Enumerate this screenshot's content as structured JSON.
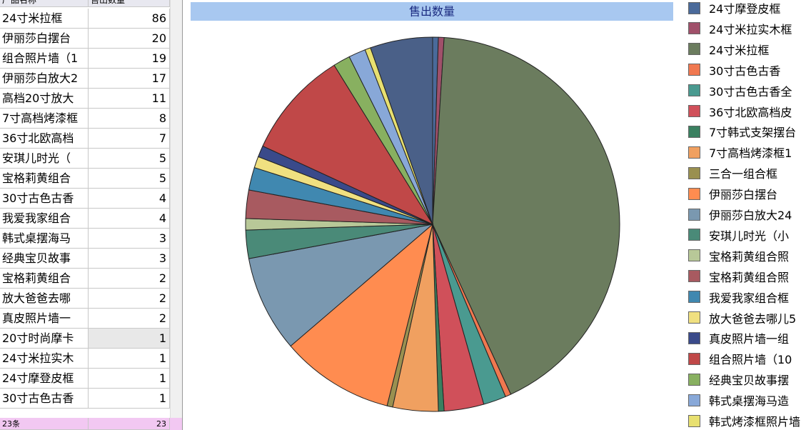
{
  "table": {
    "columns": [
      "产品名称",
      "售出数量"
    ],
    "rows": [
      [
        "24寸米拉框",
        86
      ],
      [
        "伊丽莎白摆台",
        20
      ],
      [
        "组合照片墙（1",
        19
      ],
      [
        "伊丽莎白放大2",
        17
      ],
      [
        "高档20寸放大",
        11
      ],
      [
        "7寸高档烤漆框",
        8
      ],
      [
        "36寸北欧高档",
        7
      ],
      [
        "安琪儿时光（",
        5
      ],
      [
        "宝格莉黄组合",
        5
      ],
      [
        "30寸古色古香",
        4
      ],
      [
        "我爱我家组合",
        4
      ],
      [
        "韩式桌摆海马",
        3
      ],
      [
        "经典宝贝故事",
        3
      ],
      [
        "宝格莉黄组合",
        2
      ],
      [
        "放大爸爸去哪",
        2
      ],
      [
        "真皮照片墙一",
        2
      ],
      [
        "20寸时尚摩卡",
        1
      ],
      [
        "24寸米拉实木",
        1
      ],
      [
        "24寸摩登皮框",
        1
      ],
      [
        "30寸古色古香",
        1
      ]
    ],
    "footer": [
      "23条",
      23
    ]
  },
  "chart_data": {
    "type": "pie",
    "title": "售出数量",
    "categories": [
      "24寸摩登皮框",
      "24寸米拉实木框",
      "24寸米拉框",
      "30寸古色古香",
      "30寸古色古香全",
      "36寸北欧高档皮",
      "7寸韩式支架摆台",
      "7寸高档烤漆框1",
      "三合一组合框",
      "伊丽莎白摆台",
      "伊丽莎白放大24",
      "安琪儿时光（小",
      "宝格莉黄组合照",
      "宝格莉黄组合照",
      "我爱我家组合框",
      "放大爸爸去哪儿5",
      "真皮照片墙一组",
      "组合照片墙（10",
      "经典宝贝故事摆",
      "韩式桌摆海马造",
      "韩式烤漆框照片墙",
      "高档20寸放大"
    ],
    "values": [
      1,
      1,
      86,
      1,
      4,
      7,
      1,
      8,
      1,
      20,
      17,
      5,
      2,
      5,
      4,
      2,
      2,
      19,
      3,
      3,
      1,
      11
    ],
    "colors": [
      "#4a6a9a",
      "#a0506a",
      "#6b7c5e",
      "#f07850",
      "#4a9a90",
      "#d0505a",
      "#3a8060",
      "#f0a060",
      "#9a9050",
      "#ff8c50",
      "#7a98b0",
      "#4a8a78",
      "#b8c898",
      "#a85a60",
      "#4088b0",
      "#f0e080",
      "#3a4a8a",
      "#c04848",
      "#88b060",
      "#88a8d8",
      "#e8e070",
      "#4a6088"
    ],
    "legend": "right"
  }
}
